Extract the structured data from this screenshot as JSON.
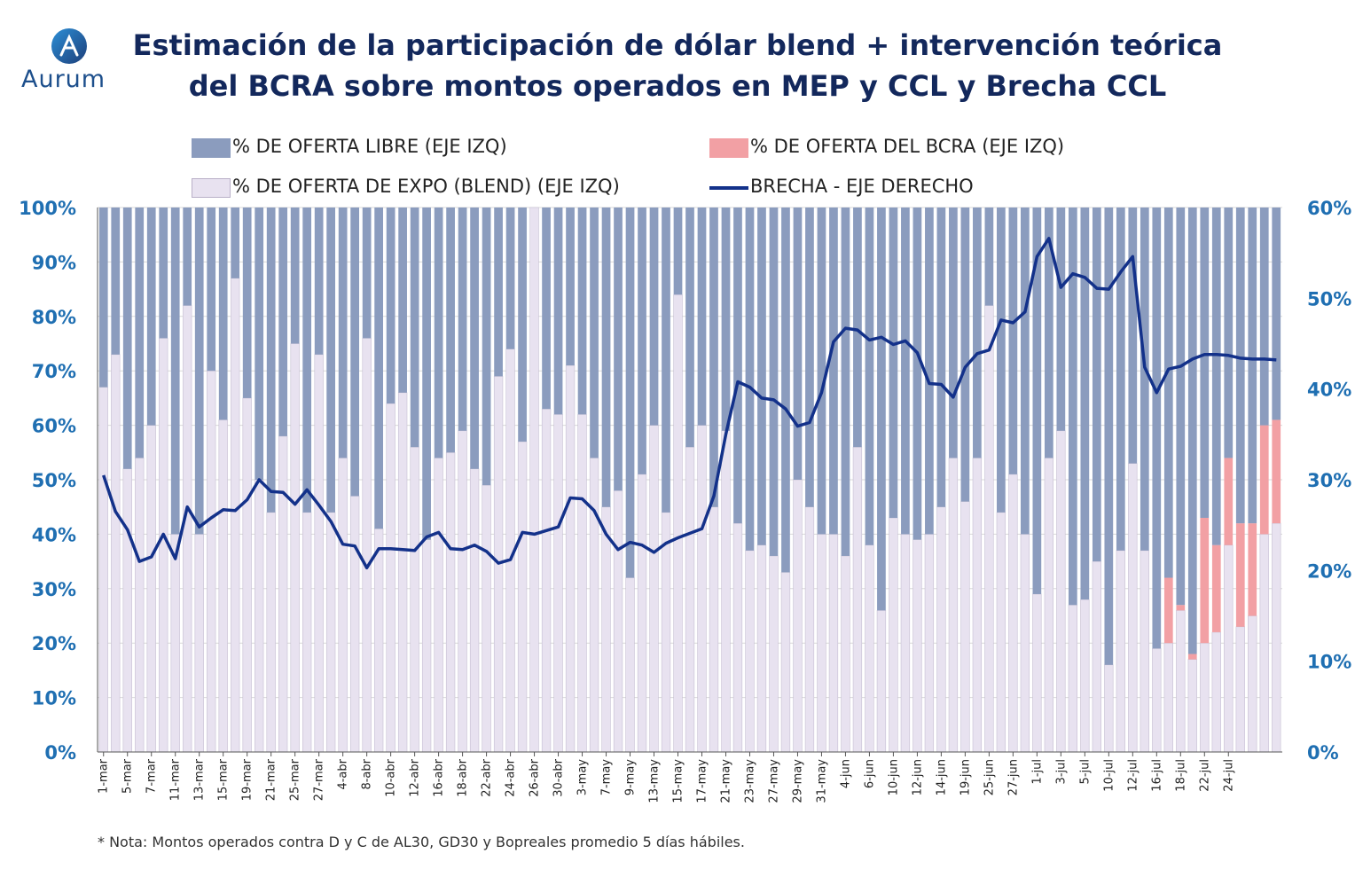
{
  "logo": {
    "brand": "Aurum",
    "icon": "aurum-logo-icon"
  },
  "title_line1": "Estimación de la participación de dólar blend + intervención teórica",
  "title_line2": "del BCRA sobre montos operados en MEP y CCL y Brecha CCL",
  "note": "* Nota: Montos operados contra D y C de AL30, GD30 y Bopreales promedio 5 días hábiles.",
  "colors": {
    "libre": "#8b9cbe",
    "bcra": "#f2a0a4",
    "expo": "#e8e2f0",
    "line": "#13318a"
  },
  "chart_data": {
    "type": "bar",
    "stacked": true,
    "title": "Estimación de la participación de dólar blend + intervención teórica del BCRA sobre montos operados en MEP y CCL y Brecha CCL",
    "legend": {
      "libre": "% DE OFERTA LIBRE (EJE IZQ)",
      "bcra": "% DE OFERTA DEL BCRA (EJE IZQ)",
      "expo": "% DE OFERTA DE EXPO (BLEND) (EJE IZQ)",
      "brecha": "BRECHA - EJE DERECHO"
    },
    "legend_position": "top",
    "left_axis": {
      "ticks": [
        "0%",
        "10%",
        "20%",
        "30%",
        "40%",
        "50%",
        "60%",
        "70%",
        "80%",
        "90%",
        "100%"
      ],
      "range": [
        0,
        100
      ]
    },
    "right_axis": {
      "ticks": [
        "0%",
        "10%",
        "20%",
        "30%",
        "40%",
        "50%",
        "60%"
      ],
      "range": [
        0,
        60
      ]
    },
    "x_tick_labels": [
      "1-mar",
      "5-mar",
      "7-mar",
      "11-mar",
      "13-mar",
      "15-mar",
      "19-mar",
      "21-mar",
      "25-mar",
      "27-mar",
      "4-abr",
      "8-abr",
      "10-abr",
      "12-abr",
      "16-abr",
      "18-abr",
      "22-abr",
      "24-abr",
      "26-abr",
      "30-abr",
      "3-may",
      "7-may",
      "9-may",
      "13-may",
      "15-may",
      "17-may",
      "21-may",
      "23-may",
      "27-may",
      "29-may",
      "31-may",
      "4-jun",
      "6-jun",
      "10-jun",
      "12-jun",
      "14-jun",
      "19-jun",
      "25-jun",
      "27-jun",
      "1-jul",
      "3-jul",
      "5-jul",
      "10-jul",
      "12-jul",
      "16-jul",
      "18-jul",
      "22-jul",
      "24-jul"
    ],
    "series": [
      {
        "name": "% DE OFERTA DE EXPO (BLEND) (EJE IZQ)",
        "key": "expo",
        "values": [
          67,
          73,
          52,
          54,
          60,
          76,
          40,
          82,
          40,
          70,
          61,
          87,
          65,
          50,
          44,
          58,
          75,
          44,
          73,
          44,
          54,
          47,
          76,
          41,
          64,
          66,
          56,
          39,
          54,
          55,
          59,
          52,
          49,
          69,
          74,
          57,
          100,
          63,
          62,
          71,
          62,
          54,
          45,
          48,
          32,
          51,
          60,
          44,
          84,
          56,
          60,
          45,
          59,
          42,
          37,
          38,
          36,
          33,
          50,
          45,
          40,
          40,
          36,
          56,
          38,
          26,
          43,
          40,
          39,
          40,
          45,
          54,
          46,
          54,
          82,
          44,
          51,
          40,
          29,
          54,
          59,
          27,
          28,
          35,
          16,
          37,
          53,
          37,
          19,
          20,
          26,
          17,
          20,
          22,
          38,
          23,
          25,
          40,
          42
        ]
      },
      {
        "name": "% DE OFERTA DEL BCRA (EJE IZQ)",
        "key": "bcra",
        "values": [
          0,
          0,
          0,
          0,
          0,
          0,
          0,
          0,
          0,
          0,
          0,
          0,
          0,
          0,
          0,
          0,
          0,
          0,
          0,
          0,
          0,
          0,
          0,
          0,
          0,
          0,
          0,
          0,
          0,
          0,
          0,
          0,
          0,
          0,
          0,
          0,
          0,
          0,
          0,
          0,
          0,
          0,
          0,
          0,
          0,
          0,
          0,
          0,
          0,
          0,
          0,
          0,
          0,
          0,
          0,
          0,
          0,
          0,
          0,
          0,
          0,
          0,
          0,
          0,
          0,
          0,
          0,
          0,
          0,
          0,
          0,
          0,
          0,
          0,
          0,
          0,
          0,
          0,
          0,
          0,
          0,
          0,
          0,
          0,
          0,
          0,
          0,
          0,
          0,
          12,
          1,
          1,
          23,
          16,
          16,
          19,
          17,
          20,
          19
        ]
      },
      {
        "name": "% DE OFERTA LIBRE (EJE IZQ)",
        "key": "libre",
        "values": [
          33,
          27,
          48,
          46,
          40,
          24,
          60,
          18,
          60,
          30,
          39,
          13,
          35,
          50,
          56,
          42,
          25,
          56,
          27,
          56,
          46,
          53,
          24,
          59,
          36,
          34,
          44,
          61,
          46,
          45,
          41,
          48,
          51,
          31,
          26,
          43,
          0,
          37,
          38,
          29,
          38,
          46,
          55,
          52,
          68,
          49,
          40,
          56,
          16,
          44,
          40,
          55,
          41,
          58,
          63,
          62,
          64,
          67,
          50,
          55,
          60,
          60,
          64,
          44,
          62,
          74,
          57,
          60,
          61,
          60,
          55,
          46,
          54,
          46,
          18,
          56,
          49,
          60,
          71,
          46,
          41,
          73,
          72,
          65,
          84,
          63,
          47,
          63,
          81,
          68,
          73,
          82,
          57,
          62,
          46,
          58,
          58,
          40,
          39
        ]
      },
      {
        "name": "BRECHA - EJE DERECHO",
        "key": "brecha",
        "axis": "right",
        "values": [
          30.5,
          26.5,
          24.5,
          21,
          21.5,
          24,
          21.3,
          27,
          24.8,
          25.8,
          26.7,
          26.6,
          27.8,
          30,
          28.7,
          28.6,
          27.3,
          28.9,
          27.2,
          25.4,
          22.9,
          22.7,
          20.3,
          22.4,
          22.4,
          22.3,
          22.2,
          23.7,
          24.2,
          22.4,
          22.3,
          22.8,
          22.1,
          20.8,
          21.2,
          24.2,
          24,
          24.4,
          24.8,
          28,
          27.9,
          26.6,
          24,
          22.3,
          23.1,
          22.8,
          22,
          23,
          23.6,
          24.1,
          24.6,
          28.2,
          35,
          40.8,
          40.2,
          39,
          38.8,
          37.8,
          35.9,
          36.3,
          39.6,
          45.2,
          46.7,
          46.5,
          45.4,
          45.7,
          44.9,
          45.3,
          44,
          40.6,
          40.5,
          39.1,
          42.4,
          43.9,
          44.3,
          47.6,
          47.3,
          48.5,
          54.6,
          56.6,
          51.2,
          52.7,
          52.3,
          51.1,
          51,
          52.9,
          54.6,
          42.4,
          39.6,
          42.2,
          42.5,
          43.3,
          43.8,
          43.8,
          43.7,
          43.4,
          43.3,
          43.3,
          43.2
        ]
      }
    ]
  }
}
